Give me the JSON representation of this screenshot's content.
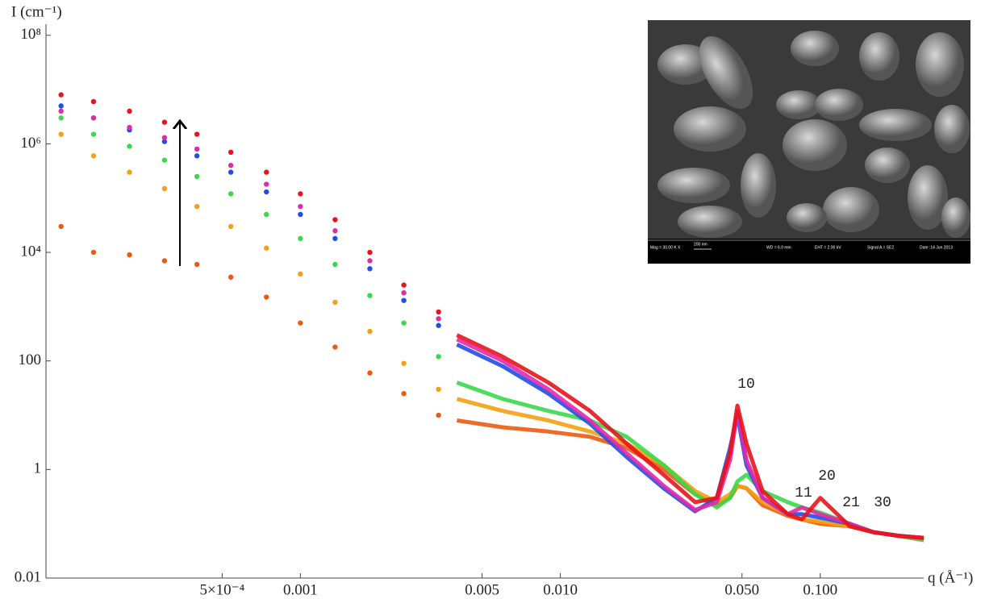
{
  "chart_data": {
    "type": "scatter",
    "y_label": "I (cm⁻¹)",
    "x_label": "q (Å⁻¹)",
    "log_x": true,
    "log_y": true,
    "grid": false,
    "xlim": [
      0.000105,
      0.25
    ],
    "ylim": [
      0.01,
      160000000
    ],
    "xticks": [
      {
        "value": 0.0005,
        "label": "5×10⁻⁴"
      },
      0.001,
      0.005,
      {
        "value": 0.01,
        "label": "0.010"
      },
      {
        "value": 0.05,
        "label": "0.050"
      },
      {
        "value": 0.1,
        "label": "0.100"
      }
    ],
    "yticks": [
      0.01,
      1,
      100,
      {
        "value": 10000,
        "label": "10⁴"
      },
      {
        "value": 1000000,
        "label": "10⁶"
      },
      {
        "value": 100000000,
        "label": "10⁸"
      }
    ],
    "annotations": [
      "10",
      "11",
      "20",
      "21",
      "30"
    ],
    "series": [
      {
        "color": "#ec5a12",
        "x": [
          0.00012,
          0.00016,
          0.00022,
          0.0003,
          0.0004,
          0.00054,
          0.00074,
          0.001,
          0.00136,
          0.00185,
          0.0025,
          0.0034
        ],
        "values": [
          30000,
          10000,
          9000,
          7000,
          6000,
          3500,
          1500,
          500,
          180,
          60,
          25,
          10
        ],
        "curve_x": [
          0.004,
          0.006,
          0.009,
          0.013,
          0.018,
          0.025,
          0.033,
          0.04,
          0.045,
          0.048,
          0.052,
          0.06,
          0.075,
          0.085,
          0.1,
          0.13,
          0.16,
          0.2,
          0.25
        ],
        "curve_values": [
          8,
          6,
          5,
          4,
          2.5,
          1,
          0.35,
          0.22,
          0.3,
          0.5,
          0.45,
          0.22,
          0.14,
          0.12,
          0.1,
          0.09,
          0.07,
          0.06,
          0.05
        ]
      },
      {
        "color": "#f5a010",
        "x": [
          0.00012,
          0.00016,
          0.00022,
          0.0003,
          0.0004,
          0.00054,
          0.00074,
          0.001,
          0.00136,
          0.00185,
          0.0025,
          0.0034
        ],
        "values": [
          1500000,
          600000,
          300000,
          150000,
          70000,
          30000,
          12000,
          4000,
          1200,
          350,
          90,
          30
        ],
        "curve_x": [
          0.004,
          0.006,
          0.009,
          0.013,
          0.018,
          0.025,
          0.033,
          0.04,
          0.045,
          0.048,
          0.052,
          0.06,
          0.075,
          0.085,
          0.1,
          0.13,
          0.16,
          0.2,
          0.25
        ],
        "curve_values": [
          20,
          12,
          8,
          5,
          3,
          1.2,
          0.4,
          0.25,
          0.35,
          0.5,
          0.45,
          0.25,
          0.15,
          0.12,
          0.11,
          0.09,
          0.07,
          0.06,
          0.05
        ]
      },
      {
        "color": "#3bd84a",
        "x": [
          0.00012,
          0.00016,
          0.00022,
          0.0003,
          0.0004,
          0.00054,
          0.00074,
          0.001,
          0.00136,
          0.00185,
          0.0025,
          0.0034
        ],
        "values": [
          3000000,
          1500000,
          900000,
          500000,
          250000,
          120000,
          50000,
          18000,
          6000,
          1600,
          500,
          120
        ],
        "curve_x": [
          0.004,
          0.006,
          0.009,
          0.013,
          0.018,
          0.025,
          0.033,
          0.04,
          0.045,
          0.048,
          0.052,
          0.06,
          0.075,
          0.085,
          0.1,
          0.13,
          0.16,
          0.2,
          0.25
        ],
        "curve_values": [
          40,
          20,
          12,
          8,
          4,
          1.2,
          0.35,
          0.2,
          0.3,
          0.6,
          0.8,
          0.4,
          0.25,
          0.2,
          0.16,
          0.1,
          0.07,
          0.06,
          0.05
        ]
      },
      {
        "color": "#1f4ee8",
        "x": [
          0.00012,
          0.00016,
          0.00022,
          0.0003,
          0.0004,
          0.00054,
          0.00074,
          0.001,
          0.00136,
          0.00185,
          0.0025,
          0.0034
        ],
        "values": [
          5000000,
          3000000,
          1800000,
          1100000,
          600000,
          300000,
          130000,
          50000,
          18000,
          5000,
          1300,
          450
        ],
        "curve_x": [
          0.004,
          0.006,
          0.009,
          0.013,
          0.018,
          0.025,
          0.033,
          0.04,
          0.045,
          0.048,
          0.052,
          0.06,
          0.075,
          0.085,
          0.1,
          0.13,
          0.16,
          0.2,
          0.25
        ],
        "curve_values": [
          200,
          80,
          25,
          7,
          1.7,
          0.45,
          0.17,
          0.3,
          2.5,
          10,
          1.2,
          0.3,
          0.15,
          0.15,
          0.13,
          0.1,
          0.07,
          0.06,
          0.055
        ]
      },
      {
        "color": "#e22aa8",
        "x": [
          0.00012,
          0.00016,
          0.00022,
          0.0003,
          0.0004,
          0.00054,
          0.00074,
          0.001,
          0.00136,
          0.00185,
          0.0025,
          0.0034
        ],
        "values": [
          4000000,
          3000000,
          2000000,
          1300000,
          800000,
          400000,
          180000,
          70000,
          25000,
          7000,
          1800,
          600
        ],
        "curve_x": [
          0.004,
          0.006,
          0.009,
          0.013,
          0.018,
          0.025,
          0.033,
          0.04,
          0.045,
          0.048,
          0.052,
          0.06,
          0.075,
          0.085,
          0.1,
          0.13,
          0.16,
          0.2,
          0.25
        ],
        "curve_values": [
          250,
          100,
          30,
          8,
          2,
          0.5,
          0.18,
          0.25,
          1.5,
          12,
          1.5,
          0.3,
          0.15,
          0.2,
          0.15,
          0.1,
          0.07,
          0.06,
          0.055
        ]
      },
      {
        "color": "#e8141b",
        "x": [
          0.00012,
          0.00016,
          0.00022,
          0.0003,
          0.0004,
          0.00054,
          0.00074,
          0.001,
          0.00136,
          0.00185,
          0.0025,
          0.0034
        ],
        "values": [
          8000000,
          6000000,
          4000000,
          2500000,
          1500000,
          700000,
          300000,
          120000,
          40000,
          10000,
          2500,
          800
        ],
        "curve_x": [
          0.004,
          0.006,
          0.009,
          0.013,
          0.018,
          0.025,
          0.033,
          0.04,
          0.045,
          0.048,
          0.052,
          0.06,
          0.075,
          0.085,
          0.1,
          0.13,
          0.16,
          0.2,
          0.25
        ],
        "curve_values": [
          300,
          120,
          40,
          12,
          3,
          0.8,
          0.25,
          0.3,
          2,
          15,
          3,
          0.4,
          0.15,
          0.12,
          0.3,
          0.09,
          0.07,
          0.06,
          0.055
        ]
      }
    ]
  },
  "inset": {
    "mag": "Mag = 30.00 K X",
    "scale": "200 nm",
    "wd": "WD = 6.0 mm",
    "eht": "EHT = 2.00 kV",
    "signal": "Signal A = SE2",
    "date": "Date :14 Jun 2013"
  }
}
